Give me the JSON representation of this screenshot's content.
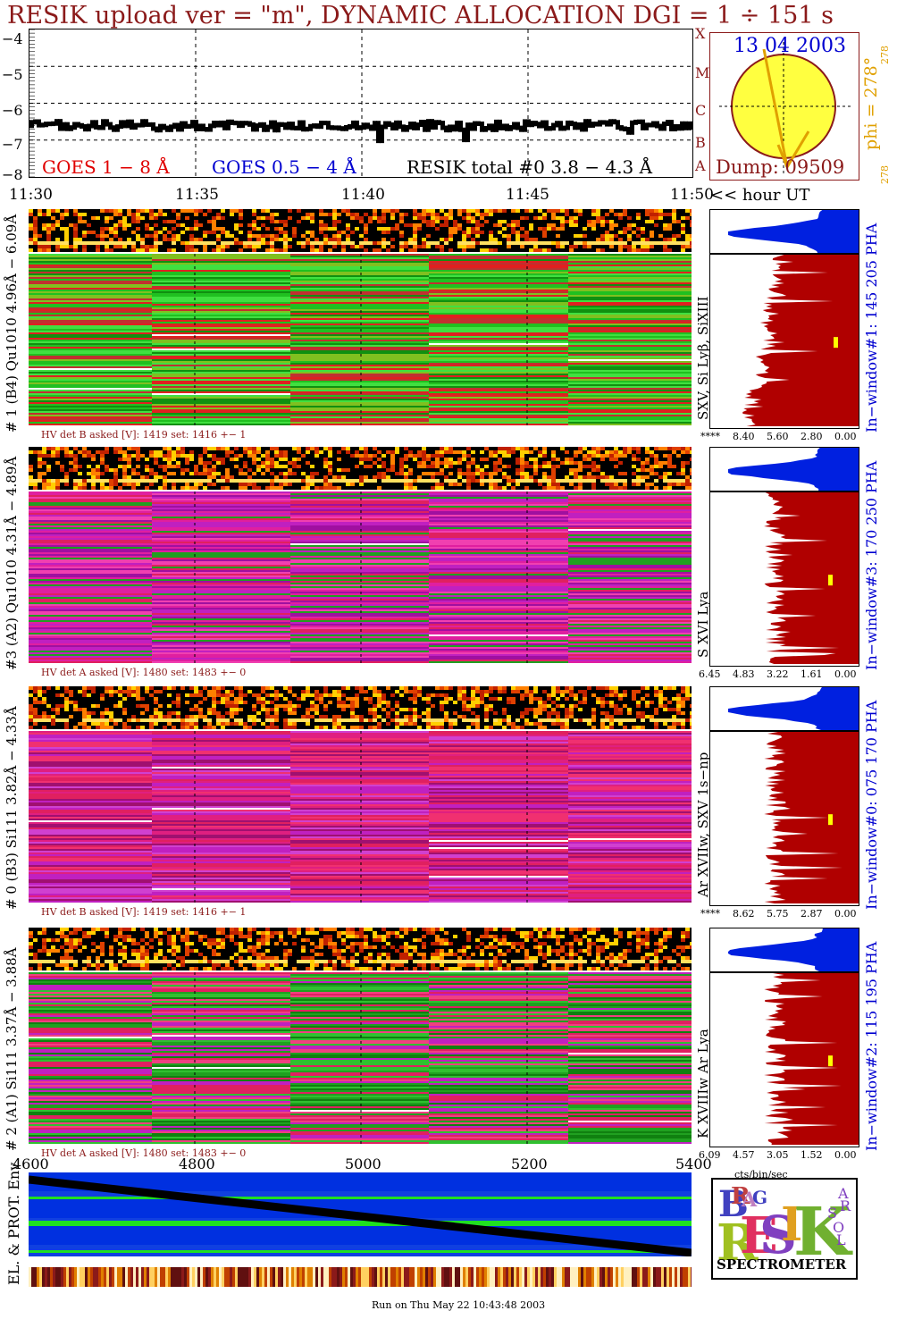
{
  "header": {
    "title": "RESIK upload ver = \"m\", DYNAMIC ALLOCATION  DGI =   1 ÷ 151 s"
  },
  "goes": {
    "y_ticks": [
      "−4",
      "−5",
      "−6",
      "−7",
      "−8"
    ],
    "x_ticks": [
      "11:30",
      "11:35",
      "11:40",
      "11:45",
      "11:50"
    ],
    "x_unit_label": "<< hour UT",
    "legend_goes18": "GOES 1 − 8 Å",
    "legend_goes054": "GOES 0.5 − 4 Å",
    "legend_resik": "RESIK total #0  3.8 − 4.3 Å",
    "class_letters": [
      "X",
      "M",
      "C",
      "B",
      "A"
    ],
    "colors": {
      "goes18": "#e00000",
      "goes054": "#0000d0",
      "resik": "#000000"
    },
    "chart_data": {
      "type": "line",
      "xlabel": "",
      "ylabel": "",
      "x_range": [
        "11:30",
        "11:50"
      ],
      "ylim": [
        -8,
        -4
      ],
      "series": [
        {
          "name": "RESIK total #0  3.8 − 4.3 Å",
          "approx_level": -6.6
        }
      ]
    }
  },
  "sun": {
    "date": "13 04 2003",
    "dump": "Dump: 09509",
    "phi": "phi = 278°",
    "phi_small_top": "278",
    "phi_small_bottom": "278",
    "colors": {
      "disk": "#ffff40",
      "border": "#8b1a1a",
      "arrow": "#e0a000"
    }
  },
  "channels": [
    {
      "left_label": "# 1 (B4) Qu1010 4.96Å − 6.09Å",
      "right_label": "In−window#1:  145 205 PHA",
      "line_label": "SXV, Si Lyβ, SiXIII",
      "hv": "HV det B asked [V]:  1419  set:  1416  +−     1",
      "axis_prefix": "****",
      "axis_ticks": [
        "8.40",
        "5.60",
        "2.80",
        "0.00"
      ]
    },
    {
      "left_label": "#3 (A2) Qu1010  4.31Å − 4.89Å",
      "right_label": "In−window#3:  170 250 PHA",
      "line_label": "S XVI Lya",
      "hv": "HV det A asked [V]:  1480  set:  1483  +−     0",
      "axis_prefix": "",
      "axis_ticks": [
        "6.45",
        "4.83",
        "3.22",
        "1.61",
        "0.00"
      ]
    },
    {
      "left_label": "# 0 (B3) Si111  3.82Å − 4.33Å",
      "right_label": "In−window#0:  075 170 PHA",
      "line_label": "Ar XVIIw,  SXV 1s−np",
      "hv": "HV det B asked [V]:  1419  set:  1416  +−     1",
      "axis_prefix": "****",
      "axis_ticks": [
        "8.62",
        "5.75",
        "2.87",
        "0.00"
      ]
    },
    {
      "left_label": "# 2 (A1) Si111  3.37Å −  3.88Å",
      "right_label": "In−window#2:  115 195 PHA",
      "line_label": "K XVIIIw  Ar Lya",
      "hv": "HV det A asked [V]:  1480  set:  1483  +−     0",
      "axis_prefix": "",
      "axis_ticks": [
        "6.09",
        "4.57",
        "3.05",
        "1.52",
        "0.00"
      ]
    }
  ],
  "bottom_axis": {
    "ticks": [
      "4600",
      "4800",
      "5000",
      "5200",
      "5400"
    ],
    "unit": "cts/bin/sec"
  },
  "env": {
    "label": "EL. & PROT. Env"
  },
  "logo": {
    "letters": [
      "B",
      "R",
      "A",
      "G",
      "R",
      "E",
      "S",
      "I",
      "K",
      "S",
      "O",
      "L",
      "A",
      "R"
    ],
    "spectrometer": "SPECTROMETER"
  },
  "footer": {
    "run_on": "Run on Thu May 22 10:43:48 2003"
  }
}
